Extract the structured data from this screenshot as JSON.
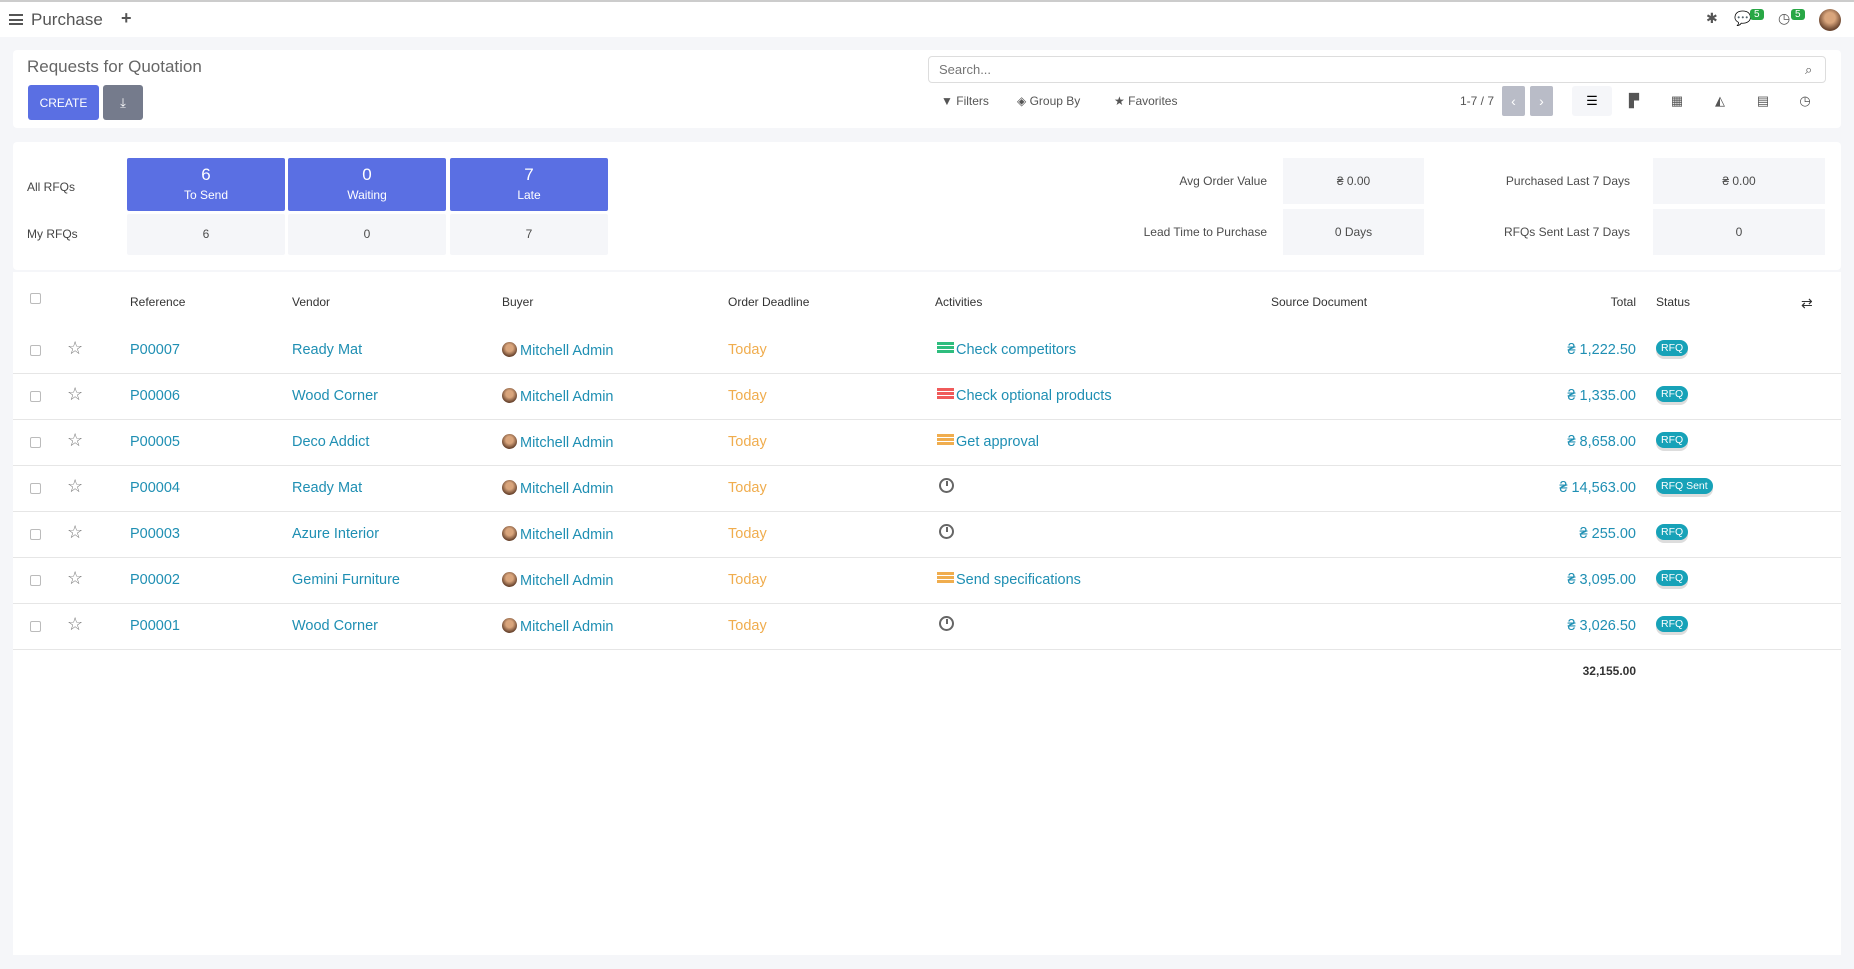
{
  "topbar": {
    "app": "Purchase",
    "chat_count": "5",
    "activity_count": "5"
  },
  "control": {
    "title": "Requests for Quotation",
    "create": "CREATE",
    "search_placeholder": "Search...",
    "filters": "Filters",
    "group_by": "Group By",
    "favorites": "Favorites",
    "pager": "1-7 / 7"
  },
  "dashboard": {
    "all_label": "All RFQs",
    "my_label": "My RFQs",
    "tiles": [
      {
        "n": "6",
        "l": "To Send",
        "my": "6"
      },
      {
        "n": "0",
        "l": "Waiting",
        "my": "0"
      },
      {
        "n": "7",
        "l": "Late",
        "my": "7"
      }
    ],
    "avg_label": "Avg Order Value",
    "avg": "₴ 0.00",
    "lead_label": "Lead Time to Purchase",
    "lead": "0 Days",
    "purch_label": "Purchased Last 7 Days",
    "purch": "₴ 0.00",
    "sent_label": "RFQs Sent Last 7 Days",
    "sent": "0"
  },
  "table": {
    "headers": [
      "Reference",
      "Vendor",
      "Buyer",
      "Order Deadline",
      "Activities",
      "Source Document",
      "Total",
      "Status"
    ],
    "rows": [
      {
        "ref": "P00007",
        "vendor": "Ready Mat",
        "buyer": "Mitchell Admin",
        "deadline": "Today",
        "activity": "Check competitors",
        "act_color": "#2ebd7e",
        "total": "₴ 1,222.50",
        "status": "RFQ"
      },
      {
        "ref": "P00006",
        "vendor": "Wood Corner",
        "buyer": "Mitchell Admin",
        "deadline": "Today",
        "activity": "Check optional products",
        "act_color": "#f05a5a",
        "total": "₴ 1,335.00",
        "status": "RFQ"
      },
      {
        "ref": "P00005",
        "vendor": "Deco Addict",
        "buyer": "Mitchell Admin",
        "deadline": "Today",
        "activity": "Get approval",
        "act_color": "#f0ad4e",
        "total": "₴ 8,658.00",
        "status": "RFQ"
      },
      {
        "ref": "P00004",
        "vendor": "Ready Mat",
        "buyer": "Mitchell Admin",
        "deadline": "Today",
        "activity": "",
        "act_color": "",
        "total": "₴ 14,563.00",
        "status": "RFQ Sent"
      },
      {
        "ref": "P00003",
        "vendor": "Azure Interior",
        "buyer": "Mitchell Admin",
        "deadline": "Today",
        "activity": "",
        "act_color": "",
        "total": "₴ 255.00",
        "status": "RFQ"
      },
      {
        "ref": "P00002",
        "vendor": "Gemini Furniture",
        "buyer": "Mitchell Admin",
        "deadline": "Today",
        "activity": "Send specifications",
        "act_color": "#f0ad4e",
        "total": "₴ 3,095.00",
        "status": "RFQ"
      },
      {
        "ref": "P00001",
        "vendor": "Wood Corner",
        "buyer": "Mitchell Admin",
        "deadline": "Today",
        "activity": "",
        "act_color": "",
        "total": "₴ 3,026.50",
        "status": "RFQ"
      }
    ],
    "sum": "32,155.00"
  }
}
